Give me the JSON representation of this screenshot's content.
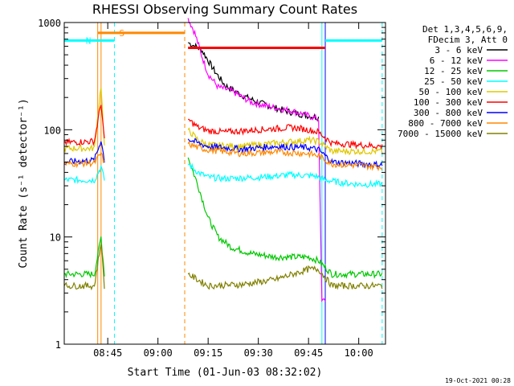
{
  "chart_data": {
    "type": "line",
    "title": "RHESSI Observing Summary Count Rates",
    "xlabel": "Start Time (01-Jun-03 08:32:02)",
    "ylabel": "Count Rate (s⁻¹ detector⁻¹)",
    "y_scale": "log",
    "ylim": [
      1,
      1000
    ],
    "xlim": [
      "08:32",
      "10:08"
    ],
    "x_ticks": [
      "08:45",
      "09:00",
      "09:15",
      "09:30",
      "09:45",
      "10:00"
    ],
    "y_ticks": [
      "1",
      "10",
      "100",
      "1000"
    ],
    "legend": {
      "placement": "right",
      "header": [
        "Det 1,3,4,5,6,9,",
        "FDecim 3, Att 0"
      ]
    },
    "series": [
      {
        "name": "3 - 6 keV",
        "color": "#000000",
        "points": [
          [
            "09:09",
            650
          ],
          [
            "09:13",
            560
          ],
          [
            "09:17",
            350
          ],
          [
            "09:20",
            260
          ],
          [
            "09:25",
            210
          ],
          [
            "09:30",
            180
          ],
          [
            "09:35",
            160
          ],
          [
            "09:40",
            145
          ],
          [
            "09:45",
            135
          ],
          [
            "09:48",
            130
          ]
        ]
      },
      {
        "name": "6 - 12 keV",
        "color": "#ff00ff",
        "points": [
          [
            "09:09",
            1100
          ],
          [
            "09:11",
            800
          ],
          [
            "09:13",
            500
          ],
          [
            "09:15",
            330
          ],
          [
            "09:18",
            250
          ],
          [
            "09:22",
            230
          ],
          [
            "09:28",
            180
          ],
          [
            "09:35",
            160
          ],
          [
            "09:40",
            150
          ],
          [
            "09:45",
            135
          ],
          [
            "09:48",
            125
          ],
          [
            "09:49",
            2.5
          ],
          [
            "09:50",
            2.6
          ]
        ]
      },
      {
        "name": "12 - 25 keV",
        "color": "#00c800",
        "points": [
          [
            "08:32",
            4.5
          ],
          [
            "08:41",
            4.5
          ],
          [
            "08:43",
            10
          ],
          [
            "08:44",
            4.5
          ],
          [
            "09:09",
            55
          ],
          [
            "09:12",
            30
          ],
          [
            "09:15",
            15
          ],
          [
            "09:18",
            10
          ],
          [
            "09:22",
            8
          ],
          [
            "09:28",
            7
          ],
          [
            "09:35",
            6.5
          ],
          [
            "09:45",
            6.5
          ],
          [
            "09:48",
            6
          ],
          [
            "09:52",
            4.5
          ],
          [
            "10:07",
            4.5
          ]
        ]
      },
      {
        "name": "25 - 50 keV",
        "color": "#00ffff",
        "points": [
          [
            "08:32",
            34
          ],
          [
            "08:41",
            34
          ],
          [
            "08:43",
            45
          ],
          [
            "08:44",
            34
          ],
          [
            "09:09",
            48
          ],
          [
            "09:12",
            40
          ],
          [
            "09:15",
            36
          ],
          [
            "09:20",
            35
          ],
          [
            "09:30",
            36
          ],
          [
            "09:40",
            38
          ],
          [
            "09:47",
            37
          ],
          [
            "09:50",
            34
          ],
          [
            "09:55",
            32
          ],
          [
            "10:00",
            31
          ],
          [
            "10:07",
            31
          ]
        ]
      },
      {
        "name": "50 - 100 keV",
        "color": "#e0c800",
        "points": [
          [
            "08:32",
            67
          ],
          [
            "08:41",
            67
          ],
          [
            "08:43",
            260
          ],
          [
            "08:44",
            67
          ],
          [
            "09:09",
            100
          ],
          [
            "09:12",
            80
          ],
          [
            "09:15",
            72
          ],
          [
            "09:25",
            70
          ],
          [
            "09:35",
            75
          ],
          [
            "09:45",
            80
          ],
          [
            "09:48",
            78
          ],
          [
            "09:52",
            63
          ],
          [
            "10:07",
            63
          ]
        ]
      },
      {
        "name": "100 - 300 keV",
        "color": "#ff0000",
        "points": [
          [
            "08:32",
            76
          ],
          [
            "08:41",
            78
          ],
          [
            "08:43",
            180
          ],
          [
            "08:44",
            78
          ],
          [
            "09:09",
            125
          ],
          [
            "09:12",
            105
          ],
          [
            "09:15",
            98
          ],
          [
            "09:20",
            95
          ],
          [
            "09:30",
            100
          ],
          [
            "09:40",
            105
          ],
          [
            "09:45",
            100
          ],
          [
            "09:48",
            95
          ],
          [
            "09:52",
            75
          ],
          [
            "10:07",
            70
          ]
        ]
      },
      {
        "name": "300 - 800 keV",
        "color": "#0000ff",
        "points": [
          [
            "08:32",
            50
          ],
          [
            "08:41",
            52
          ],
          [
            "08:43",
            80
          ],
          [
            "08:44",
            52
          ],
          [
            "09:09",
            82
          ],
          [
            "09:12",
            75
          ],
          [
            "09:15",
            70
          ],
          [
            "09:25",
            66
          ],
          [
            "09:35",
            70
          ],
          [
            "09:45",
            68
          ],
          [
            "09:48",
            65
          ],
          [
            "09:52",
            50
          ],
          [
            "10:07",
            47
          ]
        ]
      },
      {
        "name": "800 - 7000 keV",
        "color": "#ff8800",
        "points": [
          [
            "08:32",
            48
          ],
          [
            "08:41",
            49
          ],
          [
            "08:43",
            60
          ],
          [
            "08:44",
            49
          ],
          [
            "09:09",
            74
          ],
          [
            "09:12",
            68
          ],
          [
            "09:15",
            65
          ],
          [
            "09:25",
            60
          ],
          [
            "09:35",
            62
          ],
          [
            "09:45",
            60
          ],
          [
            "09:48",
            57
          ],
          [
            "09:52",
            48
          ],
          [
            "10:07",
            45
          ]
        ]
      },
      {
        "name": "7000 - 15000 keV",
        "color": "#808000",
        "points": [
          [
            "08:32",
            3.5
          ],
          [
            "08:41",
            3.5
          ],
          [
            "08:43",
            9
          ],
          [
            "08:44",
            3.5
          ],
          [
            "09:09",
            4.5
          ],
          [
            "09:15",
            3.5
          ],
          [
            "09:25",
            3.6
          ],
          [
            "09:35",
            4
          ],
          [
            "09:45",
            5
          ],
          [
            "09:48",
            5
          ],
          [
            "09:52",
            3.5
          ],
          [
            "10:07",
            3.5
          ]
        ]
      }
    ],
    "annotations": [
      {
        "label": "S",
        "color": "#ff8800",
        "start": "08:42",
        "end": "09:08",
        "level": 800
      },
      {
        "label": "N",
        "color": "#00ffff",
        "start": "08:32",
        "end": "08:47",
        "level": 680
      },
      {
        "label": "",
        "color": "#00ffff",
        "start": "09:50",
        "end": "10:07",
        "level": 680
      },
      {
        "label": "",
        "color": "#ff0000",
        "start": "09:09",
        "end": "09:50",
        "level": 580
      }
    ],
    "vertical_markers": [
      {
        "time": "08:32",
        "color": "#00ffff",
        "style": "solid"
      },
      {
        "time": "08:42",
        "color": "#ff8800",
        "style": "solid"
      },
      {
        "time": "08:43",
        "color": "#ff8800",
        "style": "solid"
      },
      {
        "time": "08:47",
        "color": "#00ffff",
        "style": "dashed"
      },
      {
        "time": "09:08",
        "color": "#ff8800",
        "style": "dashed"
      },
      {
        "time": "09:49",
        "color": "#00ffff",
        "style": "solid"
      },
      {
        "time": "09:50",
        "color": "#0000ff",
        "style": "solid"
      },
      {
        "time": "10:07",
        "color": "#00ffff",
        "style": "dashed"
      }
    ],
    "footer": "19-Oct-2021 00:28"
  }
}
